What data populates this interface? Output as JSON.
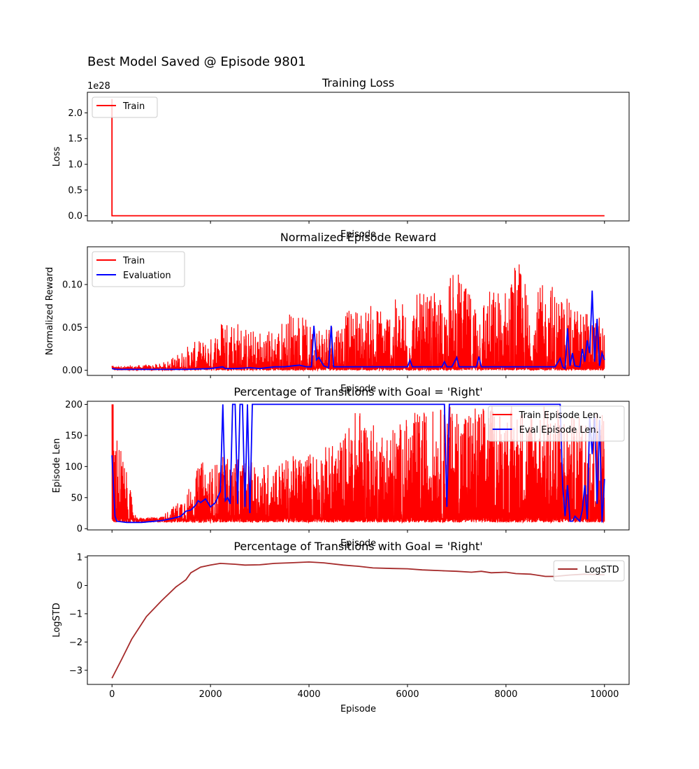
{
  "suptitle": "Best Model Saved @ Episode 9801",
  "colors": {
    "train": "#ff0000",
    "eval": "#0000ff",
    "logstd": "#a52a2a",
    "axes": "#000000"
  },
  "chart_data": [
    {
      "type": "line",
      "title": "Training Loss",
      "xlabel": "Episode",
      "ylabel": "Loss",
      "offset_text": "1e28",
      "xlim": [
        -500,
        10500
      ],
      "ylim": [
        -0.1,
        2.4
      ],
      "xticks": [
        0,
        2000,
        4000,
        6000,
        8000,
        10000
      ],
      "yticks": [
        0.0,
        0.5,
        1.0,
        1.5,
        2.0
      ],
      "ytick_labels": [
        "0.0",
        "0.5",
        "1.0",
        "1.5",
        "2.0"
      ],
      "show_xtick_labels": false,
      "grid": false,
      "legend": "upper-left",
      "series": [
        {
          "name": "Train",
          "color": "#ff0000",
          "x": [
            0,
            0,
            10000
          ],
          "y": [
            2.27,
            0,
            0
          ]
        }
      ]
    },
    {
      "type": "line",
      "title": "Normalized Episode Reward",
      "xlabel": "Episode",
      "ylabel": "Normalized Reward",
      "xlim": [
        -500,
        10500
      ],
      "ylim": [
        -0.006,
        0.144
      ],
      "xticks": [
        0,
        2000,
        4000,
        6000,
        8000,
        10000
      ],
      "yticks": [
        0.0,
        0.05,
        0.1
      ],
      "ytick_labels": [
        "0.00",
        "0.05",
        "0.10"
      ],
      "show_xtick_labels": false,
      "grid": false,
      "legend": "upper-left",
      "series": [
        {
          "name": "Train",
          "color": "#ff0000",
          "x": [
            0,
            500,
            1000,
            1300,
            1600,
            2000,
            2300,
            2800,
            3300,
            3700,
            4000,
            4500,
            5000,
            5500,
            5900,
            6200,
            6700,
            6950,
            7200,
            7500,
            8000,
            8200,
            8500,
            8900,
            9300,
            9700,
            10000
          ],
          "y": [
            0.005,
            0.006,
            0.008,
            0.018,
            0.032,
            0.038,
            0.072,
            0.048,
            0.05,
            0.076,
            0.055,
            0.062,
            0.075,
            0.08,
            0.085,
            0.09,
            0.09,
            0.124,
            0.095,
            0.095,
            0.1,
            0.137,
            0.09,
            0.107,
            0.08,
            0.07,
            0.058
          ]
        },
        {
          "name": "Evaluation",
          "color": "#0000ff",
          "x": [
            0,
            100,
            500,
            1000,
            1500,
            2000,
            2250,
            2300,
            2500,
            2800,
            3000,
            3300,
            3500,
            3800,
            3950,
            4050,
            4100,
            4150,
            4200,
            4300,
            4350,
            4400,
            4450,
            4500,
            5000,
            5500,
            6000,
            6050,
            6100,
            6500,
            6700,
            6750,
            6800,
            6900,
            7000,
            7050,
            7100,
            7400,
            7450,
            7500,
            8000,
            8500,
            9000,
            9100,
            9150,
            9200,
            9250,
            9300,
            9350,
            9400,
            9500,
            9550,
            9600,
            9650,
            9700,
            9750,
            9800,
            9850,
            9900,
            9950,
            10000
          ],
          "y": [
            0.002,
            0.001,
            0.001,
            0.001,
            0.001,
            0.002,
            0.004,
            0.002,
            0.002,
            0.003,
            0.002,
            0.004,
            0.004,
            0.006,
            0.004,
            0.004,
            0.052,
            0.012,
            0.015,
            0.005,
            0.004,
            0.003,
            0.052,
            0.004,
            0.004,
            0.004,
            0.004,
            0.012,
            0.004,
            0.004,
            0.004,
            0.01,
            0.004,
            0.004,
            0.015,
            0.004,
            0.004,
            0.004,
            0.016,
            0.004,
            0.004,
            0.004,
            0.004,
            0.014,
            0.004,
            0.002,
            0.049,
            0.005,
            0.02,
            0.005,
            0.004,
            0.025,
            0.01,
            0.035,
            0.02,
            0.093,
            0.01,
            0.06,
            0.005,
            0.02,
            0.012
          ]
        }
      ]
    },
    {
      "type": "line",
      "title": "Percentage of Transitions with Goal = 'Right'",
      "xlabel": "Episode",
      "ylabel": "Episode Len",
      "xlim": [
        -500,
        10500
      ],
      "ylim": [
        -2,
        205
      ],
      "xticks": [
        0,
        2000,
        4000,
        6000,
        8000,
        10000
      ],
      "yticks": [
        0,
        50,
        100,
        150,
        200
      ],
      "ytick_labels": [
        "0",
        "50",
        "100",
        "150",
        "200"
      ],
      "show_xtick_labels": false,
      "grid": false,
      "legend": "upper-right",
      "series": [
        {
          "name": "Train Episode Len.",
          "color": "#ff0000",
          "x": [
            0,
            500,
            1000,
            1300,
            1600,
            1800,
            2000,
            2300,
            2600,
            3000,
            3400,
            3800,
            4200,
            4600,
            5000,
            5400,
            5800,
            6200,
            6600,
            7000,
            7400,
            7800,
            8200,
            8600,
            9000,
            9400,
            9800,
            10000
          ],
          "y": [
            200,
            15,
            20,
            40,
            70,
            110,
            100,
            120,
            110,
            105,
            110,
            120,
            130,
            140,
            200,
            160,
            170,
            190,
            195,
            200,
            200,
            200,
            200,
            200,
            200,
            180,
            200,
            200
          ]
        },
        {
          "name": "Eval Episode Len.",
          "color": "#0000ff",
          "x": [
            0,
            30,
            60,
            100,
            300,
            600,
            1000,
            1200,
            1400,
            1500,
            1600,
            1700,
            1750,
            1800,
            1900,
            2000,
            2100,
            2200,
            2250,
            2300,
            2350,
            2400,
            2450,
            2500,
            2550,
            2600,
            2650,
            2700,
            2750,
            2800,
            2850,
            2900,
            6750,
            6800,
            6850,
            9100,
            9150,
            9200,
            9250,
            9300,
            9350,
            9400,
            9500,
            9550,
            9600,
            9650,
            9700,
            9750,
            9800,
            9850,
            9900,
            9950,
            10000
          ],
          "y": [
            118,
            70,
            20,
            12,
            10,
            10,
            13,
            16,
            20,
            28,
            30,
            38,
            45,
            42,
            48,
            35,
            42,
            60,
            200,
            45,
            50,
            40,
            200,
            200,
            40,
            200,
            200,
            35,
            200,
            25,
            200,
            200,
            200,
            35,
            200,
            200,
            70,
            20,
            70,
            12,
            12,
            20,
            12,
            30,
            70,
            15,
            180,
            120,
            180,
            40,
            175,
            10,
            80
          ]
        }
      ]
    },
    {
      "type": "line",
      "title": "Percentage of Transitions with Goal = 'Right'",
      "xlabel": "Episode",
      "ylabel": "LogSTD",
      "xlim": [
        -500,
        10500
      ],
      "ylim": [
        -3.5,
        1.05
      ],
      "xticks": [
        0,
        2000,
        4000,
        6000,
        8000,
        10000
      ],
      "xtick_labels": [
        "0",
        "2000",
        "4000",
        "6000",
        "8000",
        "10000"
      ],
      "yticks": [
        -3,
        -2,
        -1,
        0,
        1
      ],
      "ytick_labels": [
        "−3",
        "−2",
        "−1",
        "0",
        "1"
      ],
      "show_xtick_labels": true,
      "grid": false,
      "legend": "upper-right",
      "series": [
        {
          "name": "LogSTD",
          "color": "#a52a2a",
          "x": [
            0,
            200,
            400,
            700,
            1000,
            1300,
            1500,
            1600,
            1800,
            2000,
            2200,
            2500,
            2700,
            3000,
            3300,
            3600,
            4000,
            4300,
            4700,
            5000,
            5300,
            5700,
            6000,
            6300,
            6700,
            7000,
            7300,
            7500,
            7700,
            8000,
            8200,
            8500,
            8800,
            9000,
            9300,
            9600,
            10000
          ],
          "y": [
            -3.28,
            -2.6,
            -1.9,
            -1.1,
            -0.55,
            -0.05,
            0.2,
            0.45,
            0.65,
            0.72,
            0.78,
            0.75,
            0.72,
            0.73,
            0.78,
            0.8,
            0.83,
            0.8,
            0.72,
            0.68,
            0.62,
            0.6,
            0.59,
            0.55,
            0.52,
            0.5,
            0.47,
            0.5,
            0.45,
            0.47,
            0.42,
            0.4,
            0.32,
            0.32,
            0.37,
            0.4,
            0.38
          ]
        }
      ]
    }
  ]
}
